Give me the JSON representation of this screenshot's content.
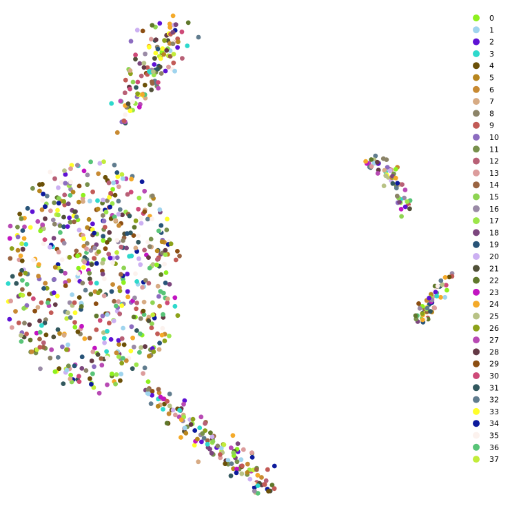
{
  "chart_data": {
    "type": "scatter",
    "title": "",
    "xlabel": "",
    "ylabel": "",
    "axes_visible": false,
    "grid": false,
    "legend_placement": "right",
    "point_count_approx": 1000,
    "clusters": [
      {
        "region": "top-left arm",
        "dominant": "mixed"
      },
      {
        "region": "large left mass",
        "dominant": "mixed"
      },
      {
        "region": "bottom-center arm",
        "dominant": "mixed"
      },
      {
        "region": "right upper island",
        "dominant": "mixed"
      },
      {
        "region": "right lower island",
        "dominant": "mixed"
      }
    ],
    "series": [
      {
        "name": "0",
        "color": "#8ef01f"
      },
      {
        "name": "1",
        "color": "#9fd4ee"
      },
      {
        "name": "2",
        "color": "#5e12d4"
      },
      {
        "name": "3",
        "color": "#2ed9cc"
      },
      {
        "name": "4",
        "color": "#6b5008"
      },
      {
        "name": "5",
        "color": "#b8861e"
      },
      {
        "name": "6",
        "color": "#c88a32"
      },
      {
        "name": "7",
        "color": "#d7ab84"
      },
      {
        "name": "8",
        "color": "#8c8468"
      },
      {
        "name": "9",
        "color": "#c25a56"
      },
      {
        "name": "10",
        "color": "#8c6cc0"
      },
      {
        "name": "11",
        "color": "#78904c"
      },
      {
        "name": "12",
        "color": "#b86076"
      },
      {
        "name": "13",
        "color": "#dc9c9c"
      },
      {
        "name": "14",
        "color": "#9a6442"
      },
      {
        "name": "15",
        "color": "#8ed452"
      },
      {
        "name": "16",
        "color": "#9a8aa6"
      },
      {
        "name": "17",
        "color": "#9ce64a"
      },
      {
        "name": "18",
        "color": "#7c467e"
      },
      {
        "name": "19",
        "color": "#285478"
      },
      {
        "name": "20",
        "color": "#ccb0f2"
      },
      {
        "name": "21",
        "color": "#505038"
      },
      {
        "name": "22",
        "color": "#60782c"
      },
      {
        "name": "23",
        "color": "#c214c2"
      },
      {
        "name": "24",
        "color": "#f4aa2a"
      },
      {
        "name": "25",
        "color": "#b8c286"
      },
      {
        "name": "26",
        "color": "#8ca21a"
      },
      {
        "name": "27",
        "color": "#b84ab4"
      },
      {
        "name": "28",
        "color": "#643a46"
      },
      {
        "name": "29",
        "color": "#8c4e12"
      },
      {
        "name": "30",
        "color": "#ce4a78"
      },
      {
        "name": "31",
        "color": "#32585e"
      },
      {
        "name": "32",
        "color": "#607c8e"
      },
      {
        "name": "33",
        "color": "#ffff2a"
      },
      {
        "name": "34",
        "color": "#0c1a9c"
      },
      {
        "name": "35",
        "color": "#fcf2ee"
      },
      {
        "name": "36",
        "color": "#58c478"
      },
      {
        "name": "37",
        "color": "#c2ec3a"
      }
    ]
  }
}
